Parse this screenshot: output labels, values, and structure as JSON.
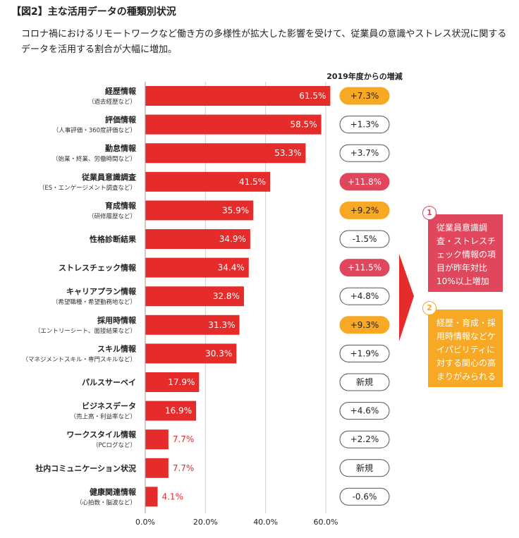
{
  "figure": {
    "title": "【図2】主な活用データの種類別状況",
    "subtitle": "コロナ禍におけるリモートワークなど働き方の多様性が拡大した影響を受けて、従業員の意識やストレス状況に関するデータを活用する割合が大幅に増加。"
  },
  "colors": {
    "bar": "#e52c2a",
    "badge_orange": "#f7a824",
    "badge_pink": "#e0475c",
    "badge_white": "#ffffff"
  },
  "chart_data": {
    "type": "bar",
    "orientation": "horizontal",
    "change_header": "2019年度からの増減",
    "x_ticks": [
      "0.0%",
      "20.0%",
      "40.0%",
      "60.0%"
    ],
    "xlim": [
      0,
      60
    ],
    "grid": true,
    "items": [
      {
        "label": "経歴情報",
        "sub": "（過去経歴など）",
        "value": 61.5,
        "value_label": "61.5%",
        "change": "+7.3%",
        "badge": "orange"
      },
      {
        "label": "評価情報",
        "sub": "（人事評価・360度評価など）",
        "value": 58.5,
        "value_label": "58.5%",
        "change": "+1.3%",
        "badge": "white"
      },
      {
        "label": "勤怠情報",
        "sub": "（始業・終業、労働時間など）",
        "value": 53.3,
        "value_label": "53.3%",
        "change": "+3.7%",
        "badge": "white"
      },
      {
        "label": "従業員意識調査",
        "sub": "（ES・エンゲージメント調査など）",
        "value": 41.5,
        "value_label": "41.5%",
        "change": "+11.8%",
        "badge": "pink"
      },
      {
        "label": "育成情報",
        "sub": "（研修履歴など）",
        "value": 35.9,
        "value_label": "35.9%",
        "change": "+9.2%",
        "badge": "orange"
      },
      {
        "label": "性格診断結果",
        "sub": "",
        "value": 34.9,
        "value_label": "34.9%",
        "change": "-1.5%",
        "badge": "white"
      },
      {
        "label": "ストレスチェック情報",
        "sub": "",
        "value": 34.4,
        "value_label": "34.4%",
        "change": "+11.5%",
        "badge": "pink"
      },
      {
        "label": "キャリアプラン情報",
        "sub": "（希望職種・希望勤務地など）",
        "value": 32.8,
        "value_label": "32.8%",
        "change": "+4.8%",
        "badge": "white"
      },
      {
        "label": "採用時情報",
        "sub": "（エントリーシート、面接結果など）",
        "value": 31.3,
        "value_label": "31.3%",
        "change": "+9.3%",
        "badge": "orange"
      },
      {
        "label": "スキル情報",
        "sub": "（マネジメントスキル・専門スキルなど）",
        "value": 30.3,
        "value_label": "30.3%",
        "change": "+1.9%",
        "badge": "white"
      },
      {
        "label": "パルスサーベイ",
        "sub": "",
        "value": 17.9,
        "value_label": "17.9%",
        "change": "新規",
        "badge": "white"
      },
      {
        "label": "ビジネスデータ",
        "sub": "（売上高・利益率など）",
        "value": 16.9,
        "value_label": "16.9%",
        "change": "+4.6%",
        "badge": "white"
      },
      {
        "label": "ワークスタイル情報",
        "sub": "（PCログなど）",
        "value": 7.7,
        "value_label": "7.7%",
        "change": "+2.2%",
        "badge": "white"
      },
      {
        "label": "社内コミュニケーション状況",
        "sub": "",
        "value": 7.7,
        "value_label": "7.7%",
        "change": "新規",
        "badge": "white"
      },
      {
        "label": "健康関連情報",
        "sub": "（心拍数・脳波など）",
        "value": 4.1,
        "value_label": "4.1%",
        "change": "-0.6%",
        "badge": "white"
      }
    ]
  },
  "callouts": [
    {
      "num": "1",
      "text": "従業員意識調査・ストレスチェック情報の項目が昨年対比10%以上増加"
    },
    {
      "num": "2",
      "text": "経歴・育成・採用時情報などケイパビリティに対する関心の高まりがみられる"
    }
  ]
}
